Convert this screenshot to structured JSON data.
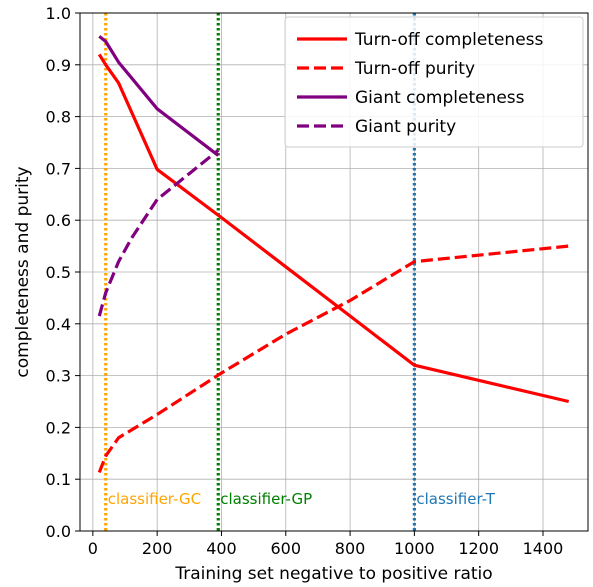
{
  "chart_data": {
    "type": "line",
    "xlabel": "Training set negative to positive ratio",
    "ylabel": "completeness and purity",
    "xlim": [
      -40,
      1540
    ],
    "ylim": [
      0.0,
      1.0
    ],
    "xticks": [
      0,
      200,
      400,
      600,
      800,
      1000,
      1200,
      1400
    ],
    "yticks": [
      0.0,
      0.1,
      0.2,
      0.3,
      0.4,
      0.5,
      0.6,
      0.7,
      0.8,
      0.9,
      1.0
    ],
    "grid": true,
    "legend_position": "top-right",
    "series": [
      {
        "name": "Turn-off completeness",
        "color": "#ff0000",
        "style": "solid",
        "x": [
          20,
          40,
          80,
          200,
          400,
          600,
          800,
          1000,
          1480
        ],
        "y": [
          0.92,
          0.9,
          0.865,
          0.698,
          0.605,
          0.51,
          0.415,
          0.32,
          0.25
        ]
      },
      {
        "name": "Turn-off purity",
        "color": "#ff0000",
        "style": "dashed",
        "x": [
          20,
          40,
          80,
          200,
          400,
          600,
          800,
          1000,
          1480
        ],
        "y": [
          0.113,
          0.145,
          0.18,
          0.225,
          0.305,
          0.38,
          0.445,
          0.52,
          0.55
        ]
      },
      {
        "name": "Giant completeness",
        "color": "#800080",
        "style": "solid",
        "x": [
          20,
          40,
          80,
          200,
          390
        ],
        "y": [
          0.955,
          0.945,
          0.905,
          0.815,
          0.725
        ]
      },
      {
        "name": "Giant purity",
        "color": "#800080",
        "style": "dashed",
        "x": [
          20,
          40,
          80,
          120,
          200,
          300,
          390
        ],
        "y": [
          0.415,
          0.46,
          0.52,
          0.565,
          0.64,
          0.69,
          0.735
        ]
      }
    ],
    "vlines": [
      {
        "x": 40,
        "color": "#ffa500",
        "label": "classifier-GC"
      },
      {
        "x": 390,
        "color": "#008000",
        "label": "classifier-GP"
      },
      {
        "x": 1000,
        "color": "#1f77b4",
        "label": "classifier-T"
      }
    ]
  }
}
